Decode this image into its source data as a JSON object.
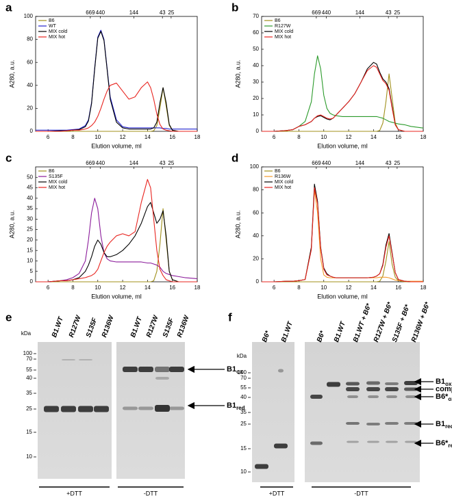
{
  "chart_data": [
    {
      "type": "line",
      "panel_label": "a",
      "xlabel": "Elution volume, ml",
      "ylabel": "A280, a.u.",
      "xlim": [
        5,
        18
      ],
      "xticks": [
        6,
        8,
        10,
        12,
        14,
        16,
        18
      ],
      "ylim": [
        0,
        100
      ],
      "yticks": [
        0,
        20,
        40,
        60,
        80,
        100
      ],
      "grid": false,
      "legend": "upper left",
      "annotations": [
        {
          "text": "669",
          "x": 9.4
        },
        {
          "text": "440",
          "x": 10.2
        },
        {
          "text": "144",
          "x": 12.9
        },
        {
          "text": "43",
          "x": 15.2
        },
        {
          "text": "25",
          "x": 15.9
        }
      ],
      "x": [
        5,
        6,
        7,
        7.5,
        8,
        8.5,
        9,
        9.25,
        9.5,
        9.75,
        10,
        10.25,
        10.5,
        10.75,
        11,
        11.5,
        12,
        12.5,
        13,
        13.5,
        14,
        14.25,
        14.5,
        14.75,
        15,
        15.25,
        15.5,
        15.75,
        16,
        16.5,
        17,
        18
      ],
      "series": [
        {
          "name": "B6",
          "color": "#a0901a",
          "values": [
            0,
            0,
            0,
            0,
            0,
            0,
            0,
            0,
            0,
            0,
            0,
            0,
            0,
            0,
            0,
            0,
            0,
            0,
            0,
            0,
            0,
            0,
            0.5,
            5,
            20,
            38,
            22,
            5,
            1,
            0,
            0,
            0
          ]
        },
        {
          "name": "WT",
          "color": "#2020cc",
          "values": [
            1,
            1,
            1,
            1,
            1.5,
            2,
            5,
            10,
            25,
            55,
            82,
            88,
            80,
            55,
            30,
            10,
            4,
            3,
            3,
            3,
            3,
            3,
            3,
            3,
            3,
            2.5,
            2.5,
            2,
            2,
            2,
            2,
            2
          ]
        },
        {
          "name": "MIX cold",
          "color": "#000000",
          "values": [
            0,
            0,
            0.5,
            0.5,
            1,
            1.5,
            4,
            9,
            24,
            54,
            81,
            87,
            79,
            54,
            28,
            8,
            3,
            2,
            2,
            2,
            2,
            2,
            3,
            8,
            25,
            38,
            25,
            6,
            1,
            0,
            0,
            0
          ]
        },
        {
          "name": "MIX hot",
          "color": "#e8231e",
          "values": [
            0,
            0,
            0,
            0.5,
            1,
            1,
            2,
            3,
            5,
            8,
            13,
            20,
            28,
            35,
            40,
            42,
            35,
            28,
            30,
            38,
            43,
            38,
            28,
            15,
            6,
            2,
            1,
            0.5,
            0,
            0,
            0,
            0
          ]
        }
      ]
    },
    {
      "type": "line",
      "panel_label": "b",
      "xlabel": "Elution volume, ml",
      "ylabel": "A280, a.u.",
      "xlim": [
        5,
        18
      ],
      "xticks": [
        6,
        8,
        10,
        12,
        14,
        16,
        18
      ],
      "ylim": [
        0,
        70
      ],
      "yticks": [
        0,
        10,
        20,
        30,
        40,
        50,
        60,
        70
      ],
      "grid": false,
      "legend": "upper left",
      "annotations": [
        {
          "text": "669",
          "x": 9.4
        },
        {
          "text": "440",
          "x": 10.2
        },
        {
          "text": "144",
          "x": 12.9
        },
        {
          "text": "43",
          "x": 15.2
        },
        {
          "text": "25",
          "x": 15.9
        }
      ],
      "x": [
        5,
        6,
        7,
        7.5,
        8,
        8.5,
        9,
        9.25,
        9.5,
        9.75,
        10,
        10.25,
        10.5,
        10.75,
        11,
        11.5,
        12,
        12.5,
        13,
        13.5,
        14,
        14.25,
        14.5,
        14.75,
        15,
        15.25,
        15.5,
        15.75,
        16,
        16.5,
        17,
        18
      ],
      "series": [
        {
          "name": "B6",
          "color": "#a0901a",
          "values": [
            0,
            0,
            0,
            0,
            0,
            0,
            0,
            0,
            0,
            0,
            0,
            0,
            0,
            0,
            0,
            0,
            0,
            0,
            0,
            0,
            0,
            0,
            0.5,
            5,
            18,
            35,
            20,
            5,
            1,
            0,
            0,
            0
          ]
        },
        {
          "name": "R127W",
          "color": "#2a9a2a",
          "values": [
            0,
            0,
            0.5,
            1,
            3,
            6,
            18,
            35,
            46,
            38,
            22,
            14,
            11,
            10,
            9.5,
            9,
            9,
            9,
            9,
            9,
            9,
            9,
            8.5,
            8,
            7,
            6,
            5.5,
            5,
            4.5,
            4,
            3,
            2
          ]
        },
        {
          "name": "MIX cold",
          "color": "#000000",
          "values": [
            0,
            0,
            0.5,
            1,
            3,
            4,
            6,
            8,
            9,
            9.5,
            8.5,
            7.5,
            7,
            8,
            10,
            14,
            18,
            23,
            30,
            38,
            42,
            41,
            36,
            32,
            30,
            26,
            15,
            4,
            1,
            0,
            0,
            0
          ]
        },
        {
          "name": "MIX hot",
          "color": "#e8231e",
          "values": [
            0,
            0,
            0.5,
            1,
            3,
            4,
            6,
            8,
            9.5,
            10,
            9,
            8,
            7.5,
            8,
            10,
            14,
            18,
            23,
            30,
            37,
            40,
            39,
            35,
            31,
            29,
            25,
            14,
            4,
            1,
            0,
            0,
            0
          ]
        }
      ]
    },
    {
      "type": "line",
      "panel_label": "c",
      "xlabel": "Elution volume, ml",
      "ylabel": "A280, a.u.",
      "xlim": [
        5,
        18
      ],
      "xticks": [
        6,
        8,
        10,
        12,
        14,
        16,
        18
      ],
      "ylim": [
        0,
        55
      ],
      "yticks": [
        0,
        5,
        10,
        15,
        20,
        25,
        30,
        35,
        40,
        45,
        50
      ],
      "grid": false,
      "legend": "upper left",
      "annotations": [
        {
          "text": "669",
          "x": 9.4
        },
        {
          "text": "440",
          "x": 10.2
        },
        {
          "text": "144",
          "x": 12.9
        },
        {
          "text": "43",
          "x": 15.2
        },
        {
          "text": "25",
          "x": 15.9
        }
      ],
      "x": [
        5,
        6,
        7,
        7.5,
        8,
        8.5,
        9,
        9.25,
        9.5,
        9.75,
        10,
        10.25,
        10.5,
        10.75,
        11,
        11.5,
        12,
        12.5,
        13,
        13.5,
        14,
        14.25,
        14.5,
        14.75,
        15,
        15.25,
        15.5,
        15.75,
        16,
        16.5,
        17,
        18
      ],
      "series": [
        {
          "name": "B6",
          "color": "#a0901a",
          "values": [
            0,
            0,
            0,
            0,
            0,
            0,
            0,
            0,
            0,
            0,
            0,
            0,
            0,
            0,
            0,
            0,
            0,
            0,
            0,
            0,
            0,
            0,
            0.5,
            5,
            18,
            35,
            20,
            5,
            1,
            0,
            0,
            0
          ]
        },
        {
          "name": "S135F",
          "color": "#8a1a9a",
          "values": [
            0,
            0,
            0.5,
            1,
            2,
            4,
            10,
            20,
            33,
            40,
            35,
            22,
            14,
            11,
            10,
            9.5,
            9.5,
            9.5,
            9.5,
            9.5,
            9,
            9,
            8.5,
            8,
            7,
            5,
            4,
            3.5,
            3,
            2.5,
            2,
            1.5
          ]
        },
        {
          "name": "MIX cold",
          "color": "#000000",
          "values": [
            0,
            0,
            0.5,
            0.5,
            1,
            2,
            5,
            8,
            12,
            17,
            20,
            18,
            14,
            12,
            12,
            13,
            15,
            18,
            22,
            28,
            36,
            38,
            33,
            28,
            30,
            34,
            22,
            5,
            1,
            0,
            0,
            0
          ]
        },
        {
          "name": "MIX hot",
          "color": "#e8231e",
          "values": [
            0,
            0,
            0.5,
            0.5,
            1,
            1.5,
            2,
            2.5,
            3,
            4,
            6,
            10,
            14,
            17,
            19,
            22,
            23,
            22,
            24,
            38,
            49,
            45,
            30,
            15,
            6,
            3,
            1,
            0.5,
            0,
            0,
            0,
            0
          ]
        }
      ]
    },
    {
      "type": "line",
      "panel_label": "d",
      "xlabel": "Elution volume, ml",
      "ylabel": "A280, a.u.",
      "xlim": [
        5,
        18
      ],
      "xticks": [
        6,
        8,
        10,
        12,
        14,
        16,
        18
      ],
      "ylim": [
        0,
        100
      ],
      "yticks": [
        0,
        20,
        40,
        60,
        80,
        100
      ],
      "grid": false,
      "legend": "upper left",
      "annotations": [
        {
          "text": "669",
          "x": 9.4
        },
        {
          "text": "440",
          "x": 10.2
        },
        {
          "text": "144",
          "x": 12.9
        },
        {
          "text": "43",
          "x": 15.2
        },
        {
          "text": "25",
          "x": 15.9
        }
      ],
      "x": [
        5,
        6,
        7,
        7.5,
        8,
        8.5,
        9,
        9.25,
        9.5,
        9.75,
        10,
        10.25,
        10.5,
        10.75,
        11,
        11.5,
        12,
        12.5,
        13,
        13.5,
        14,
        14.25,
        14.5,
        14.75,
        15,
        15.25,
        15.5,
        15.75,
        16,
        16.5,
        17,
        18
      ],
      "series": [
        {
          "name": "B6",
          "color": "#a0901a",
          "values": [
            0,
            0,
            0,
            0,
            0,
            0,
            0,
            0,
            0,
            0,
            0,
            0,
            0,
            0,
            0,
            0,
            0,
            0,
            0,
            0,
            0,
            0,
            0.5,
            5,
            18,
            35,
            15,
            4,
            1,
            0,
            0,
            0
          ]
        },
        {
          "name": "R136W",
          "color": "#f29a2a",
          "values": [
            0,
            0,
            0.5,
            0.5,
            1,
            2,
            30,
            80,
            60,
            20,
            6,
            4,
            3.5,
            3.5,
            3.5,
            3.5,
            3.5,
            3.5,
            3.5,
            3.5,
            3.5,
            3.5,
            4,
            4,
            4,
            3.5,
            2.5,
            1.5,
            1,
            0.5,
            0.5,
            0.5
          ]
        },
        {
          "name": "MIX cold",
          "color": "#000000",
          "values": [
            0,
            0,
            0.5,
            0.5,
            1,
            2,
            30,
            85,
            70,
            30,
            12,
            7,
            5,
            4,
            3.5,
            3.5,
            3.5,
            3.5,
            3.5,
            3.5,
            4,
            5,
            7,
            15,
            32,
            42,
            25,
            8,
            2,
            0.5,
            0,
            0
          ]
        },
        {
          "name": "MIX hot",
          "color": "#e8231e",
          "values": [
            0,
            0,
            0.5,
            0.5,
            1,
            2,
            28,
            82,
            68,
            29,
            11,
            6,
            5,
            4,
            3.5,
            3.5,
            3.5,
            3.5,
            3.5,
            3.5,
            4,
            5,
            7,
            14,
            30,
            40,
            24,
            8,
            2,
            0.5,
            0,
            0
          ]
        }
      ]
    }
  ],
  "gels": [
    {
      "panel_label": "e",
      "unit": "kDa",
      "ladder": [
        "100",
        "70",
        "55",
        "40",
        "35",
        "25",
        "15",
        "10"
      ],
      "lanes": [
        "B1.WT",
        "R127W",
        "S135F",
        "R136W",
        "B1.WT",
        "R127W",
        "S135F",
        "R136W"
      ],
      "arrows": [
        {
          "main": "B1",
          "sub": "ox"
        },
        {
          "main": "B1",
          "sub": "red"
        }
      ],
      "conditions": [
        "+DTT",
        "-DTT"
      ]
    },
    {
      "panel_label": "f",
      "unit": "kDa",
      "ladder": [
        "100",
        "70",
        "55",
        "40",
        "35",
        "25",
        "15",
        "10"
      ],
      "lanes": [
        "B6*",
        "B1.WT",
        "B6*",
        "B1.WT",
        "B1.WT + B6*",
        "R127W + B6*",
        "S135F + B6*",
        "R136W + B6*"
      ],
      "arrows": [
        {
          "main": "B1",
          "sub": "ox"
        },
        {
          "main": "complex",
          "sub": null
        },
        {
          "main": "B6*",
          "sub": "ox"
        },
        {
          "main": "B1",
          "sub": "red"
        },
        {
          "main": "B6*",
          "sub": "red"
        }
      ],
      "conditions": [
        "+DTT",
        "-DTT"
      ]
    }
  ]
}
